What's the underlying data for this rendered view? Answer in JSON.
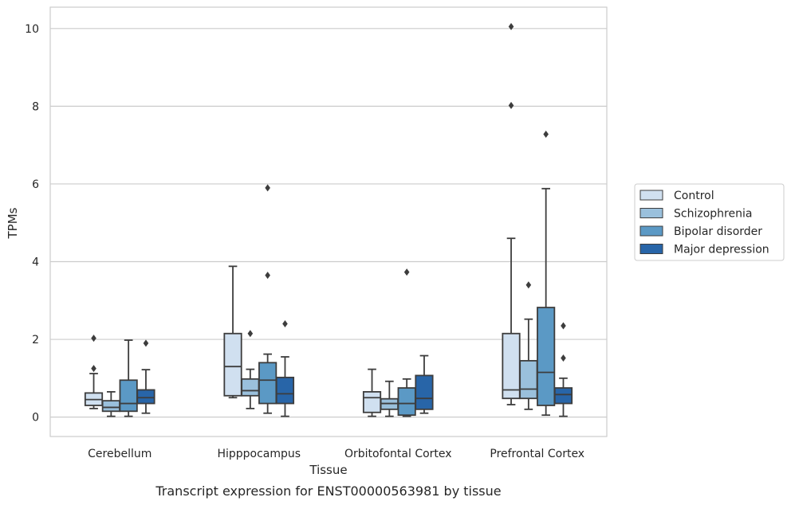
{
  "chart_data": {
    "type": "box",
    "title": "Transcript expression for ENST00000563981 by tissue",
    "xlabel": "Tissue",
    "ylabel": "TPMs",
    "ylim": [
      -0.5,
      10.55
    ],
    "yticks": [
      0,
      2,
      4,
      6,
      8,
      10
    ],
    "grid": "horizontal",
    "legend_position": "right",
    "categories": [
      "Cerebellum",
      "Hipppocampus",
      "Orbitofontal Cortex",
      "Prefrontal Cortex"
    ],
    "series": [
      {
        "name": "Control",
        "color": "#d0e0f0",
        "boxes": [
          {
            "whislo": 0.22,
            "q1": 0.3,
            "med": 0.45,
            "q3": 0.62,
            "whishi": 1.12,
            "fliers": [
              1.25,
              2.03
            ]
          },
          {
            "whislo": 0.5,
            "q1": 0.55,
            "med": 1.3,
            "q3": 2.15,
            "whishi": 3.88,
            "fliers": []
          },
          {
            "whislo": 0.02,
            "q1": 0.12,
            "med": 0.5,
            "q3": 0.65,
            "whishi": 1.23,
            "fliers": []
          },
          {
            "whislo": 0.32,
            "q1": 0.48,
            "med": 0.7,
            "q3": 2.15,
            "whishi": 4.6,
            "fliers": [
              8.02,
              10.05
            ]
          }
        ]
      },
      {
        "name": "Schizophrenia",
        "color": "#9ac0dc",
        "boxes": [
          {
            "whislo": 0.02,
            "q1": 0.15,
            "med": 0.25,
            "q3": 0.42,
            "whishi": 0.65,
            "fliers": []
          },
          {
            "whislo": 0.22,
            "q1": 0.55,
            "med": 0.68,
            "q3": 0.98,
            "whishi": 1.23,
            "fliers": [
              2.15
            ]
          },
          {
            "whislo": 0.02,
            "q1": 0.2,
            "med": 0.35,
            "q3": 0.47,
            "whishi": 0.92,
            "fliers": []
          },
          {
            "whislo": 0.2,
            "q1": 0.48,
            "med": 0.72,
            "q3": 1.45,
            "whishi": 2.52,
            "fliers": [
              3.4
            ]
          }
        ]
      },
      {
        "name": "Bipolar disorder",
        "color": "#5b99c5",
        "boxes": [
          {
            "whislo": 0.02,
            "q1": 0.15,
            "med": 0.35,
            "q3": 0.95,
            "whishi": 1.98,
            "fliers": []
          },
          {
            "whislo": 0.1,
            "q1": 0.35,
            "med": 0.95,
            "q3": 1.4,
            "whishi": 1.62,
            "fliers": [
              3.65,
              5.9
            ]
          },
          {
            "whislo": 0.02,
            "q1": 0.05,
            "med": 0.35,
            "q3": 0.75,
            "whishi": 0.98,
            "fliers": [
              3.73
            ]
          },
          {
            "whislo": 0.05,
            "q1": 0.3,
            "med": 1.15,
            "q3": 2.82,
            "whishi": 5.88,
            "fliers": [
              7.28
            ]
          }
        ]
      },
      {
        "name": "Major depression",
        "color": "#2865a8",
        "boxes": [
          {
            "whislo": 0.1,
            "q1": 0.35,
            "med": 0.5,
            "q3": 0.7,
            "whishi": 1.22,
            "fliers": [
              1.9
            ]
          },
          {
            "whislo": 0.02,
            "q1": 0.35,
            "med": 0.6,
            "q3": 1.02,
            "whishi": 1.55,
            "fliers": [
              2.4
            ]
          },
          {
            "whislo": 0.1,
            "q1": 0.2,
            "med": 0.48,
            "q3": 1.07,
            "whishi": 1.58,
            "fliers": []
          },
          {
            "whislo": 0.02,
            "q1": 0.35,
            "med": 0.58,
            "q3": 0.75,
            "whishi": 1.0,
            "fliers": [
              1.52,
              2.35
            ]
          }
        ]
      }
    ]
  }
}
